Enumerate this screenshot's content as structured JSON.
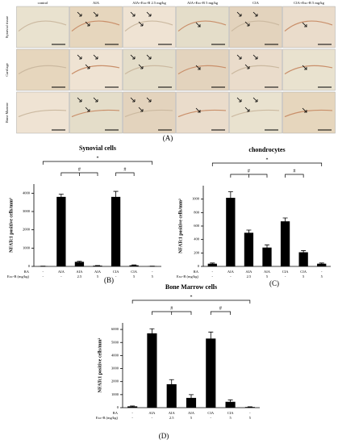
{
  "micrographs": {
    "panel_label": "(A)",
    "columns": [
      "control",
      "AIA",
      "AIA+Exc-B 2.5 mg/kg",
      "AIA+Exc-B 5 mg/kg",
      "CIA",
      "CIA+Exc-B 5 mg/kg"
    ],
    "rows": [
      "Synovial tissue",
      "Cartilage",
      "Bone Marrow"
    ]
  },
  "chart_data": [
    {
      "type": "bar",
      "title": "Synovial cells",
      "panel_label": "(B)",
      "y_label": "NFATc1 positive cells/mm²",
      "color": "#000000",
      "category_rows": [
        {
          "name": "RA",
          "labels": [
            "-",
            "AIA",
            "AIA",
            "AIA",
            "CIA",
            "CIA",
            "-"
          ]
        },
        {
          "name": "Exc-B (mg/kg)",
          "labels": [
            "-",
            "-",
            "2.5",
            "5",
            "-",
            "5",
            "5"
          ]
        }
      ],
      "values": [
        10,
        3800,
        250,
        40,
        3800,
        60,
        10
      ],
      "errors": [
        5,
        150,
        30,
        10,
        300,
        20,
        5
      ],
      "ylim": [
        0,
        4500
      ],
      "yticks": [
        0,
        1000,
        2000,
        3000,
        4000
      ],
      "significance": [
        "*",
        "#",
        "#"
      ]
    },
    {
      "type": "bar",
      "title": "chondrocytes",
      "panel_label": "(C)",
      "y_label": "NFATc1 positive cells/mm²",
      "color": "#000000",
      "category_rows": [
        {
          "name": "RA",
          "labels": [
            "-",
            "AIA",
            "AIA",
            "AIA",
            "CIA",
            "CIA",
            "-"
          ]
        },
        {
          "name": "Exc-B (mg/kg)",
          "labels": [
            "-",
            "-",
            "2.5",
            "5",
            "-",
            "5",
            "5"
          ]
        }
      ],
      "values": [
        40,
        1020,
        500,
        280,
        670,
        210,
        40
      ],
      "errors": [
        10,
        90,
        40,
        40,
        50,
        25,
        10
      ],
      "ylim": [
        0,
        1200
      ],
      "yticks": [
        0,
        200,
        400,
        600,
        800,
        1000
      ],
      "significance": [
        "*",
        "#",
        "#"
      ]
    },
    {
      "type": "bar",
      "title": "Bone Marrow cells",
      "panel_label": "(D)",
      "y_label": "NFATc1 positive cells/mm²",
      "color": "#000000",
      "category_rows": [
        {
          "name": "RA",
          "labels": [
            "-",
            "AIA",
            "AIA",
            "AIA",
            "CIA",
            "CIA",
            "-"
          ]
        },
        {
          "name": "Exc-B (mg/kg)",
          "labels": [
            "-",
            "-",
            "2.5",
            "5",
            "-",
            "5",
            "5"
          ]
        }
      ],
      "values": [
        100,
        5700,
        1800,
        750,
        5300,
        450,
        50
      ],
      "errors": [
        30,
        350,
        350,
        250,
        500,
        150,
        20
      ],
      "ylim": [
        0,
        6500
      ],
      "yticks": [
        0,
        1000,
        2000,
        3000,
        4000,
        5000,
        6000
      ],
      "significance": [
        "*",
        "#",
        "#"
      ]
    }
  ]
}
